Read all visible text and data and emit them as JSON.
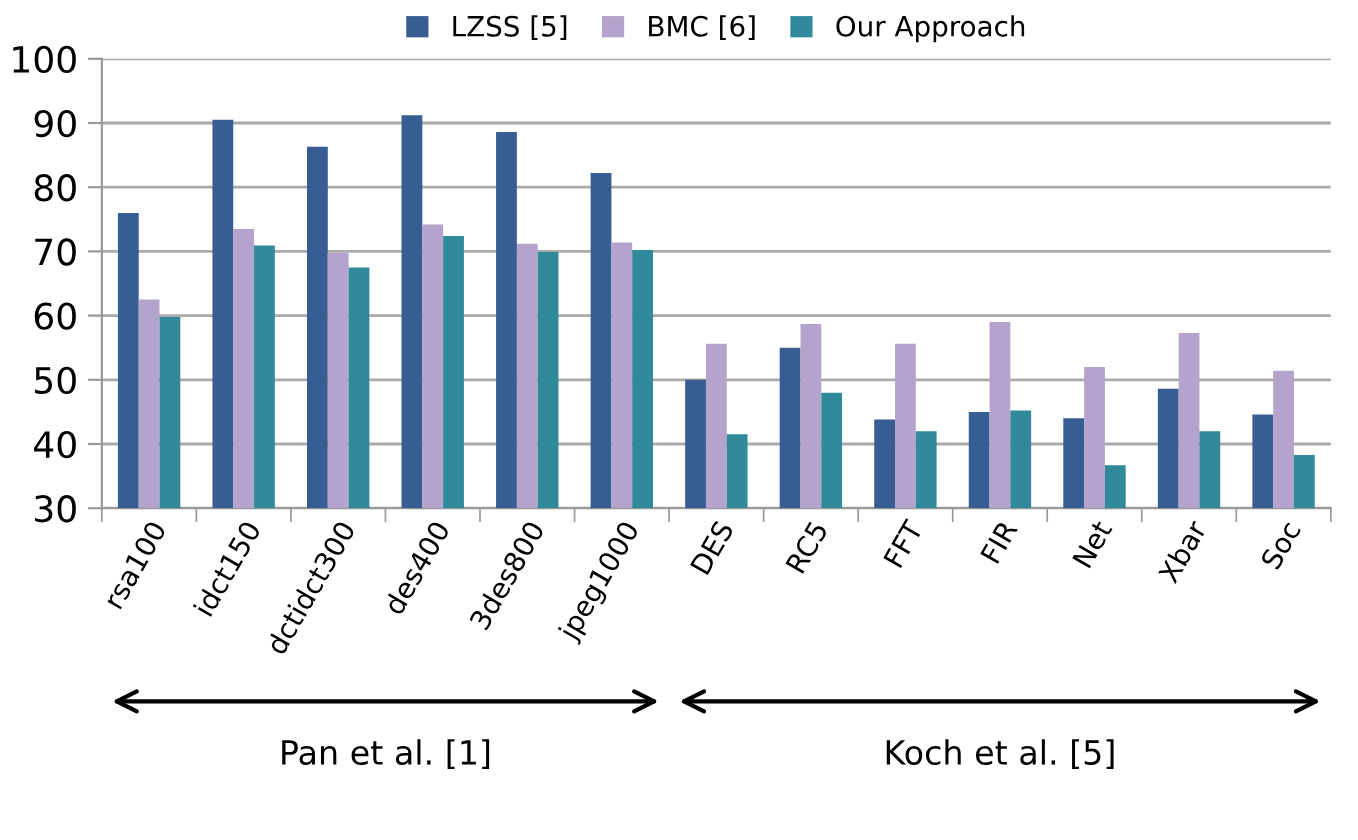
{
  "chart_data": {
    "type": "bar",
    "categories": [
      "rsa100",
      "idct150",
      "dctidct300",
      "des400",
      "3des800",
      "jpeg1000",
      "DES",
      "RC5",
      "FFT",
      "FIR",
      "Net",
      "Xbar",
      "Soc"
    ],
    "series": [
      {
        "name": "LZSS [5]",
        "color": "#385d92",
        "values": [
          76,
          90.5,
          86.3,
          91.2,
          88.6,
          82.2,
          50,
          55,
          43.8,
          45,
          44,
          48.6,
          44.6
        ]
      },
      {
        "name": "BMC [6]",
        "color": "#b4a3cc",
        "values": [
          62.5,
          73.5,
          69.8,
          74.2,
          71.2,
          71.4,
          55.6,
          58.7,
          55.6,
          59,
          52,
          57.3,
          51.4
        ]
      },
      {
        "name": "Our Approach",
        "color": "#318a9c",
        "values": [
          59.8,
          70.9,
          67.5,
          72.4,
          69.9,
          70.2,
          41.5,
          48,
          42,
          45.2,
          36.7,
          42,
          38.3
        ]
      }
    ],
    "ylim": [
      30,
      100
    ],
    "yticks": [
      30,
      40,
      50,
      60,
      70,
      80,
      90,
      100
    ],
    "grid": "y",
    "legend": "top",
    "annotations": [
      "Pan et al. [1]",
      "Koch et al. [5]"
    ]
  }
}
